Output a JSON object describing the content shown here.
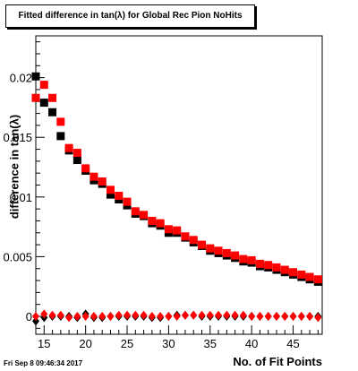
{
  "title": "Fitted difference in tan(λ) for Global Rec Pion NoHits",
  "timestamp": "Fri Sep  8 09:46:34 2017",
  "chart_data": {
    "type": "scatter",
    "title": "Fitted difference in tan(λ) for Global Rec Pion NoHits",
    "xlabel": "No. of Fit Points",
    "ylabel": "difference in tan(λ)",
    "xlim": [
      14,
      48.5
    ],
    "ylim": [
      -0.0015,
      0.0235
    ],
    "x_ticks": [
      15,
      20,
      25,
      30,
      35,
      40,
      45
    ],
    "x_tick_labels": [
      "15",
      "20",
      "25",
      "30",
      "35",
      "40",
      "45"
    ],
    "y_ticks": [
      0,
      0.005,
      0.01,
      0.015,
      0.02
    ],
    "y_tick_labels": [
      "0",
      "0.005",
      "0.01",
      "0.015",
      "0.02"
    ],
    "grid": false,
    "x": [
      14,
      15,
      16,
      17,
      18,
      19,
      20,
      21,
      22,
      23,
      24,
      25,
      26,
      27,
      28,
      29,
      30,
      31,
      32,
      33,
      34,
      35,
      36,
      37,
      38,
      39,
      40,
      41,
      42,
      43,
      44,
      45,
      46,
      47,
      48
    ],
    "series": [
      {
        "marker": "square",
        "color": "#000000",
        "values": [
          0.0201,
          0.0179,
          0.0171,
          0.0151,
          0.0139,
          0.0131,
          0.0122,
          0.0114,
          0.0111,
          0.0102,
          0.0098,
          0.0093,
          0.0086,
          0.0084,
          0.0078,
          0.0076,
          0.007,
          0.007,
          0.0066,
          0.0062,
          0.0059,
          0.0055,
          0.0053,
          0.0051,
          0.0049,
          0.0046,
          0.0045,
          0.0042,
          0.0041,
          0.0039,
          0.0037,
          0.0035,
          0.0033,
          0.0031,
          0.0029
        ]
      },
      {
        "marker": "square",
        "color": "#ff0000",
        "values": [
          0.0183,
          0.0194,
          0.0183,
          0.0163,
          0.0141,
          0.0137,
          0.0124,
          0.0117,
          0.0113,
          0.0106,
          0.0101,
          0.0096,
          0.0088,
          0.0085,
          0.008,
          0.0078,
          0.0073,
          0.0072,
          0.0067,
          0.0064,
          0.006,
          0.0057,
          0.0055,
          0.0053,
          0.0051,
          0.0048,
          0.0047,
          0.0044,
          0.0043,
          0.0041,
          0.0039,
          0.0037,
          0.0035,
          0.0033,
          0.0031
        ]
      },
      {
        "marker": "diamond",
        "color": "#000000",
        "values": [
          -0.0004,
          -0.0001,
          0.0,
          0.0,
          0.0,
          -0.0001,
          0.0002,
          -0.0001,
          -0.0001,
          0.0,
          0.0,
          0.0,
          0.0,
          0.0,
          -0.0001,
          -0.0001,
          0.0,
          0.0001,
          0.0001,
          0.0001,
          0.0,
          0.0,
          0.0,
          0.0,
          0.0,
          0.0,
          0.0,
          0.0,
          0.0,
          0.0,
          0.0,
          0.0,
          0.0,
          0.0,
          0.0
        ]
      },
      {
        "marker": "diamond",
        "color": "#ff0000",
        "values": [
          0.0,
          0.0002,
          0.0001,
          0.0001,
          -0.0001,
          0.0,
          0.0,
          0.0,
          0.0,
          0.0,
          0.0001,
          0.0001,
          0.0001,
          0.0001,
          0.0,
          0.0,
          0.0,
          0.0,
          0.0001,
          0.0001,
          0.0001,
          0.0001,
          0.0001,
          0.0001,
          0.0001,
          0.0001,
          0.0,
          0.0,
          0.0,
          0.0,
          0.0,
          0.0,
          0.0,
          0.0,
          -0.0001
        ]
      }
    ]
  }
}
